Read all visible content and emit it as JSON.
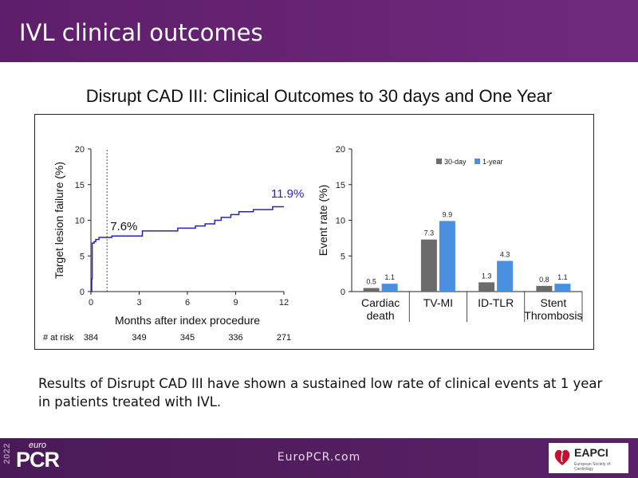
{
  "header": {
    "title": "IVL clinical outcomes"
  },
  "slide_title": "Disrupt CAD III: Clinical Outcomes to 30 days and One Year",
  "summary": "Results of Disrupt CAD III have shown a sustained low rate of clinical events at 1 year in patients treated with IVL.",
  "footer": {
    "year": "2022",
    "brand_top": "euro",
    "brand_main": "PCR",
    "url": "EuroPCR.com",
    "partner_name": "EAPCI",
    "partner_sub": "European Society of Cardiology"
  },
  "colors": {
    "header_bg": "#6a2878",
    "line": "#2a22c0",
    "bar_30day": "#6b6b6b",
    "bar_1year": "#4a8fe0"
  },
  "chart_data": [
    {
      "type": "line",
      "xlabel": "Months after index procedure",
      "ylabel": "Target lesion failure (%)",
      "xlim": [
        0,
        12
      ],
      "ylim": [
        0,
        20
      ],
      "xticks": [
        0,
        3,
        6,
        9,
        12
      ],
      "yticks": [
        0,
        5,
        10,
        15,
        20
      ],
      "reference_line_x": 1,
      "annotations": [
        {
          "text": "7.6%",
          "x": 1.2,
          "y": 8.6
        },
        {
          "text": "11.9%",
          "x": 11.2,
          "y": 13.2
        }
      ],
      "series": [
        {
          "step": true,
          "points": [
            [
              0,
              0
            ],
            [
              0.05,
              1.8
            ],
            [
              0.08,
              6.8
            ],
            [
              0.2,
              7.0
            ],
            [
              0.3,
              7.3
            ],
            [
              0.5,
              7.6
            ],
            [
              1.2,
              7.6
            ],
            [
              1.3,
              7.8
            ],
            [
              3.0,
              7.8
            ],
            [
              3.2,
              8.5
            ],
            [
              5.3,
              8.5
            ],
            [
              5.4,
              8.9
            ],
            [
              6.4,
              8.9
            ],
            [
              6.5,
              9.2
            ],
            [
              7.0,
              9.2
            ],
            [
              7.1,
              9.5
            ],
            [
              7.6,
              9.5
            ],
            [
              7.7,
              10.0
            ],
            [
              8.0,
              10.0
            ],
            [
              8.1,
              10.4
            ],
            [
              8.6,
              10.4
            ],
            [
              8.7,
              10.8
            ],
            [
              9.1,
              10.8
            ],
            [
              9.2,
              11.2
            ],
            [
              10.0,
              11.2
            ],
            [
              10.1,
              11.5
            ],
            [
              11.2,
              11.5
            ],
            [
              11.3,
              11.9
            ],
            [
              12.0,
              11.9
            ]
          ]
        }
      ],
      "at_risk": {
        "label": "# at risk",
        "x": [
          0,
          3,
          6,
          9,
          12
        ],
        "values": [
          384,
          349,
          345,
          336,
          271
        ]
      }
    },
    {
      "type": "bar",
      "ylabel": "Event rate (%)",
      "ylim": [
        0,
        20
      ],
      "yticks": [
        0,
        5,
        10,
        15,
        20
      ],
      "legend_position": "top",
      "categories": [
        [
          "Cardiac",
          "death"
        ],
        [
          "TV-MI"
        ],
        [
          "ID-TLR"
        ],
        [
          "Stent",
          "Thrombosis"
        ]
      ],
      "series": [
        {
          "name": "30-day",
          "values": [
            0.5,
            7.3,
            1.3,
            0.8
          ],
          "labels": [
            "0.5",
            "7.3",
            "1.3",
            "0.8"
          ]
        },
        {
          "name": "1-year",
          "values": [
            1.1,
            9.9,
            4.3,
            1.1
          ],
          "labels": [
            "1.1",
            "9.9",
            "4.3",
            "1.1"
          ]
        }
      ]
    }
  ]
}
